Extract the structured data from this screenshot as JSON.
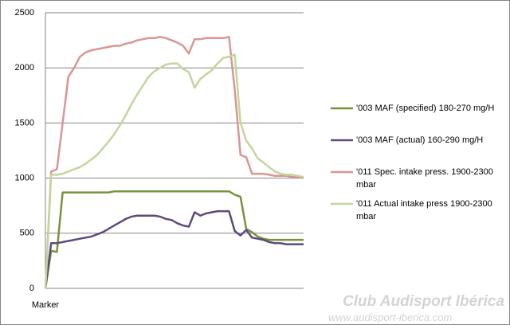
{
  "chart_data": {
    "type": "line",
    "categories": [
      "Marker",
      null,
      null,
      null,
      null,
      null,
      null,
      null,
      null,
      null,
      null,
      null,
      null,
      null,
      null,
      null,
      null,
      null,
      null,
      null,
      null,
      null,
      null,
      null,
      null,
      null,
      null,
      null,
      null,
      null,
      null,
      null,
      null,
      null,
      null,
      null,
      null,
      null,
      null,
      null,
      null,
      null,
      null,
      null,
      null,
      null
    ],
    "series": [
      {
        "name": "'003 MAF (specified) 180-270 mg/H",
        "color": "#77933c",
        "values": [
          0,
          340,
          330,
          870,
          870,
          870,
          870,
          870,
          870,
          870,
          870,
          870,
          880,
          880,
          880,
          880,
          880,
          880,
          880,
          880,
          880,
          880,
          880,
          880,
          880,
          880,
          880,
          880,
          880,
          880,
          880,
          880,
          880,
          850,
          830,
          540,
          510,
          470,
          450,
          440,
          440,
          440,
          440,
          440,
          440,
          440
        ]
      },
      {
        "name": "'003 MAF (actual)  160-290 mg/H",
        "color": "#604a7b",
        "values": [
          0,
          410,
          410,
          420,
          430,
          440,
          450,
          460,
          470,
          490,
          510,
          540,
          570,
          600,
          630,
          650,
          660,
          660,
          660,
          660,
          650,
          630,
          620,
          590,
          570,
          560,
          690,
          660,
          680,
          690,
          700,
          700,
          700,
          520,
          480,
          530,
          460,
          450,
          440,
          420,
          410,
          410,
          400,
          400,
          400,
          400
        ]
      },
      {
        "name": "'011 Spec. intake press. 1900-2300 mbar",
        "color": "#d99694",
        "values": [
          0,
          1060,
          1080,
          1500,
          1920,
          2000,
          2100,
          2140,
          2160,
          2170,
          2180,
          2190,
          2200,
          2200,
          2220,
          2230,
          2250,
          2260,
          2270,
          2270,
          2280,
          2270,
          2250,
          2230,
          2200,
          2130,
          2260,
          2260,
          2270,
          2270,
          2270,
          2270,
          2280,
          1800,
          1210,
          1190,
          1040,
          1040,
          1040,
          1030,
          1020,
          1020,
          1020,
          1010,
          1010,
          1010
        ]
      },
      {
        "name": "'011 Actual intake press 1900-2300 mbar",
        "color": "#c3d69b",
        "values": [
          0,
          1030,
          1030,
          1040,
          1060,
          1080,
          1100,
          1130,
          1170,
          1210,
          1270,
          1330,
          1400,
          1480,
          1570,
          1670,
          1760,
          1840,
          1920,
          1970,
          2000,
          2030,
          2040,
          2040,
          1990,
          1960,
          1820,
          1900,
          1940,
          1980,
          2040,
          2090,
          2100,
          2120,
          1500,
          1340,
          1270,
          1180,
          1140,
          1100,
          1060,
          1040,
          1030,
          1030,
          1020,
          1010
        ]
      }
    ],
    "ylim": [
      0,
      2500
    ],
    "yticks": [
      0,
      500,
      1000,
      1500,
      2000,
      2500
    ],
    "grid": true,
    "legend": "right"
  },
  "watermark": {
    "title": "Club Audisport Ibérica",
    "url": "www.audisport-iberica.com"
  }
}
